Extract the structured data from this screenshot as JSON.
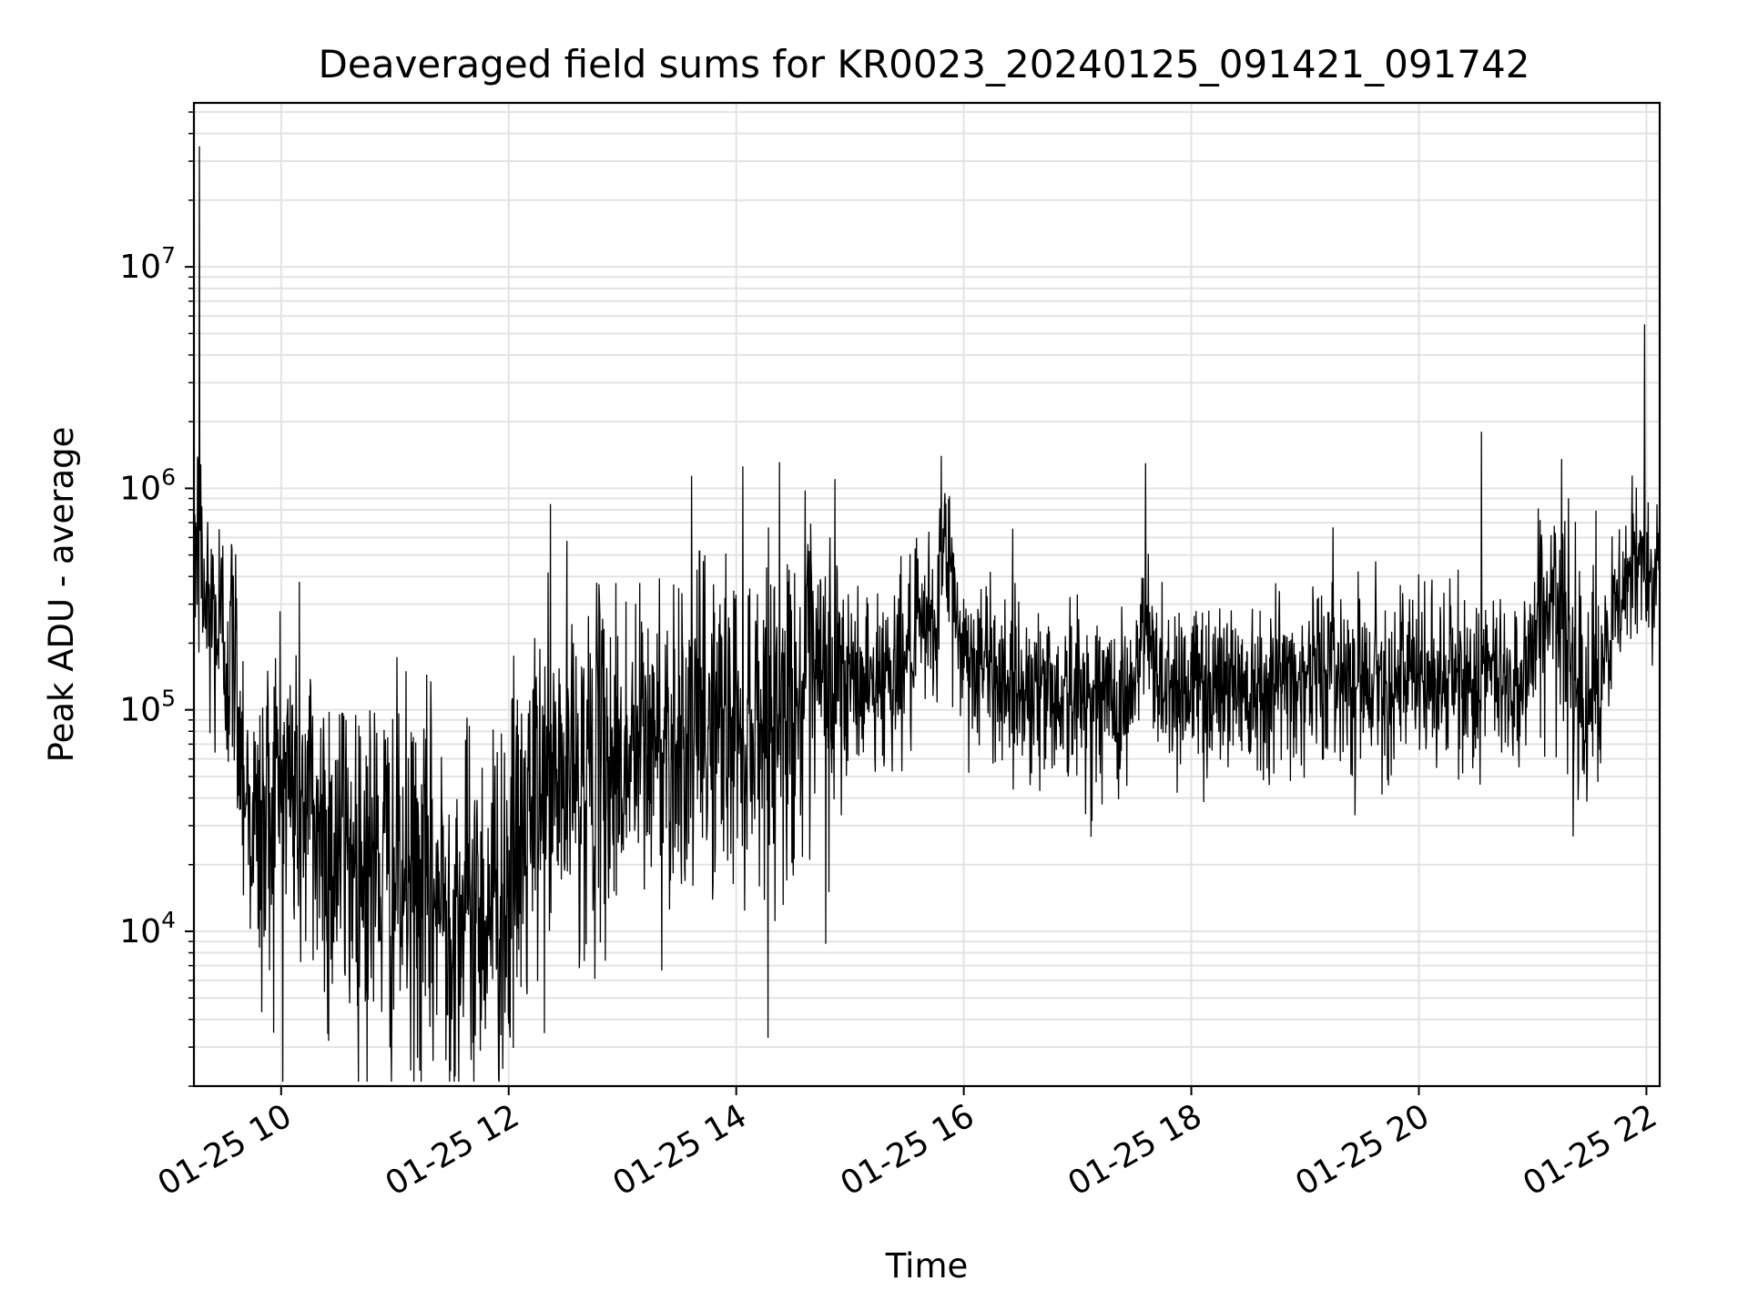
{
  "chart_data": {
    "type": "line",
    "title": "Deaveraged field sums for KR0023_20240125_091421_091742",
    "xlabel": "Time",
    "ylabel": "Peak ADU - average",
    "yscale": "log",
    "ylim": [
      2000,
      55000000
    ],
    "xlim": [
      "01-25 09:14",
      "01-25 22:07"
    ],
    "grid": true,
    "line_color": "#000000",
    "x_ticks": [
      "01-25 10",
      "01-25 12",
      "01-25 14",
      "01-25 16",
      "01-25 18",
      "01-25 20",
      "01-25 22"
    ],
    "y_ticks": [
      {
        "base": "10",
        "exp": "4",
        "value": 10000
      },
      {
        "base": "10",
        "exp": "5",
        "value": 100000
      },
      {
        "base": "10",
        "exp": "6",
        "value": 1000000
      },
      {
        "base": "10",
        "exp": "7",
        "value": 10000000
      }
    ],
    "series": [
      {
        "x": [
          "01-25 09:15",
          "01-25 09:20",
          "01-25 09:25",
          "01-25 09:30",
          "01-25 09:35",
          "01-25 09:40",
          "01-25 09:45",
          "01-25 09:50",
          "01-25 09:55",
          "01-25 10:00",
          "01-25 10:10",
          "01-25 10:20",
          "01-25 10:30",
          "01-25 10:40",
          "01-25 10:50",
          "01-25 11:00",
          "01-25 11:10",
          "01-25 11:20",
          "01-25 11:30",
          "01-25 11:40",
          "01-25 11:50",
          "01-25 12:00",
          "01-25 12:10",
          "01-25 12:20",
          "01-25 12:30",
          "01-25 12:45",
          "01-25 13:00",
          "01-25 13:15",
          "01-25 13:30",
          "01-25 13:45",
          "01-25 14:00",
          "01-25 14:15",
          "01-25 14:30",
          "01-25 14:45",
          "01-25 15:00",
          "01-25 15:15",
          "01-25 15:30",
          "01-25 15:45",
          "01-25 15:50",
          "01-25 15:55",
          "01-25 16:00",
          "01-25 16:15",
          "01-25 16:30",
          "01-25 16:45",
          "01-25 17:00",
          "01-25 17:15",
          "01-25 17:30",
          "01-25 17:35",
          "01-25 17:40",
          "01-25 17:50",
          "01-25 18:00",
          "01-25 18:30",
          "01-25 19:00",
          "01-25 19:10",
          "01-25 19:30",
          "01-25 20:00",
          "01-25 20:30",
          "01-25 20:55",
          "01-25 21:05",
          "01-25 21:15",
          "01-25 21:25",
          "01-25 21:35",
          "01-25 21:45",
          "01-25 21:55",
          "01-25 22:05"
        ],
        "y": [
          600000,
          300000,
          250000,
          200000,
          180000,
          60000,
          30000,
          25000,
          40000,
          50000,
          40000,
          30000,
          25000,
          22000,
          20000,
          17000,
          15000,
          14000,
          13000,
          12000,
          14000,
          15000,
          30000,
          45000,
          50000,
          55000,
          60000,
          70000,
          80000,
          85000,
          90000,
          95000,
          110000,
          120000,
          130000,
          140000,
          170000,
          250000,
          550000,
          300000,
          180000,
          150000,
          130000,
          120000,
          115000,
          110000,
          115000,
          250000,
          160000,
          130000,
          130000,
          135000,
          140000,
          155000,
          145000,
          135000,
          135000,
          140000,
          300000,
          250000,
          150000,
          120000,
          300000,
          450000,
          480000
        ]
      }
    ],
    "spikes": [
      {
        "x": "01-25 09:17",
        "y": 35000000
      },
      {
        "x": "01-25 10:25",
        "y": 3200
      },
      {
        "x": "01-25 11:30",
        "y": 4000
      },
      {
        "x": "01-25 12:22",
        "y": 850000
      },
      {
        "x": "01-25 14:52",
        "y": 1100000
      },
      {
        "x": "01-25 15:48",
        "y": 1400000
      },
      {
        "x": "01-25 17:36",
        "y": 1300000
      },
      {
        "x": "01-25 20:33",
        "y": 1800000
      },
      {
        "x": "01-25 21:59",
        "y": 5500000
      }
    ]
  }
}
